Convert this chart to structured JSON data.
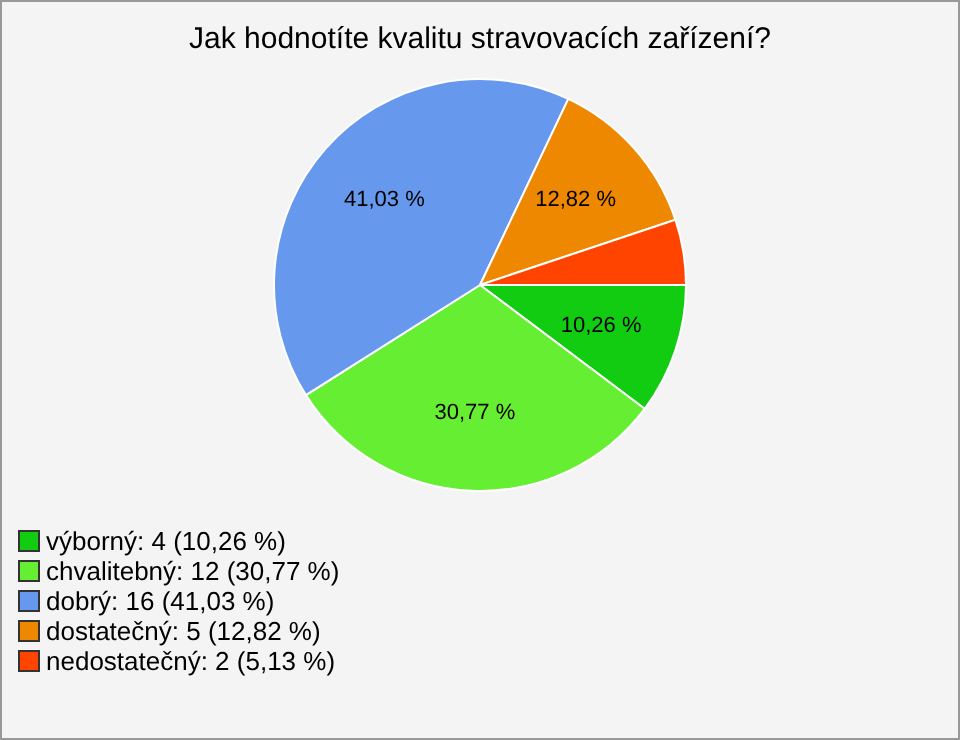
{
  "chart_data": {
    "type": "pie",
    "title": "Jak hodnotíte kvalitu stravovacích zařízení?",
    "categories": [
      "výborný: 4 (10,26 %)",
      "chvalitebný: 12 (30,77 %)",
      "dobrý: 16 (41,03 %)",
      "dostatečný: 5 (12,82 %)",
      "nedostatečný: 2 (5,13 %)"
    ],
    "values": [
      10.26,
      30.77,
      41.03,
      12.82,
      5.13
    ],
    "value_labels": [
      "10,26 %",
      "30,77 %",
      "41,03 %",
      "12,82 %",
      null
    ],
    "colors": [
      "#11cc11",
      "#66ee33",
      "#6699ee",
      "#ee8800",
      "#ff4400"
    ],
    "legend": "bottom left"
  }
}
